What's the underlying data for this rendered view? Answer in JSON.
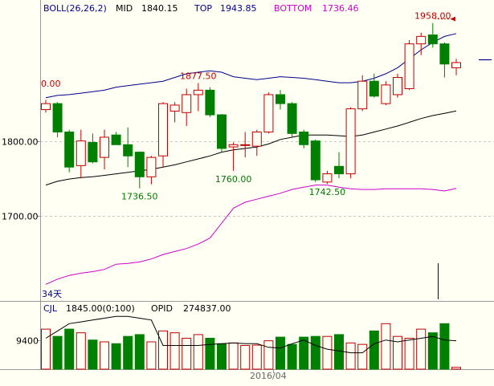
{
  "colors": {
    "background": "#fffff4",
    "up": "#c00000",
    "down": "#008000",
    "top_band": "#00008b",
    "mid_band": "#000000",
    "bottom_band": "#cc00cc",
    "header": "#00008b",
    "annotation_red": "#c00000",
    "annotation_green": "#007a00",
    "grid": "#c8c8c8"
  },
  "price_panel": {
    "legend": {
      "indicator": "BOLL(26,26,2)",
      "mid_label": "MID",
      "mid_value": "1840.15",
      "top_label": "TOP",
      "top_value": "1943.85",
      "bottom_label": "BOTTOM",
      "bottom_value": "1736.46"
    },
    "corner_label": "34天",
    "left_cut_label": "0.00"
  },
  "volume_panel": {
    "legend": {
      "indicator": "CJL",
      "vol_value": "1845.00(0:100)",
      "opid_label": "OPID",
      "opid_value": "274837.00"
    }
  },
  "x_axis": {
    "date_label": "2016/04"
  },
  "chart_data": [
    {
      "type": "candlestick",
      "y_ticks": [
        1800,
        1700
      ],
      "y_tick_labels": [
        "1800.00",
        "1700.00"
      ],
      "ylim": [
        1589,
        1978
      ],
      "candles": [
        {
          "o": 1842,
          "c": 1850,
          "h": 1855,
          "l": 1838
        },
        {
          "o": 1850,
          "c": 1812,
          "h": 1852,
          "l": 1805
        },
        {
          "o": 1812,
          "c": 1765,
          "h": 1815,
          "l": 1758
        },
        {
          "o": 1767,
          "c": 1800,
          "h": 1815,
          "l": 1750
        },
        {
          "o": 1798,
          "c": 1772,
          "h": 1810,
          "l": 1770
        },
        {
          "o": 1778,
          "c": 1805,
          "h": 1815,
          "l": 1762
        },
        {
          "o": 1808,
          "c": 1795,
          "h": 1812,
          "l": 1795
        },
        {
          "o": 1795,
          "c": 1780,
          "h": 1818,
          "l": 1765
        },
        {
          "o": 1785,
          "c": 1752,
          "h": 1786,
          "l": 1736.5
        },
        {
          "o": 1752,
          "c": 1778,
          "h": 1780,
          "l": 1742
        },
        {
          "o": 1780,
          "c": 1850,
          "h": 1852,
          "l": 1765
        },
        {
          "o": 1840,
          "c": 1848,
          "h": 1852,
          "l": 1825
        },
        {
          "o": 1838,
          "c": 1862,
          "h": 1870,
          "l": 1820
        },
        {
          "o": 1862,
          "c": 1868,
          "h": 1877.5,
          "l": 1840
        },
        {
          "o": 1868,
          "c": 1835,
          "h": 1872,
          "l": 1832
        },
        {
          "o": 1835,
          "c": 1790,
          "h": 1836,
          "l": 1785
        },
        {
          "o": 1792,
          "c": 1795,
          "h": 1798,
          "l": 1760
        },
        {
          "o": 1795,
          "c": 1795,
          "h": 1812,
          "l": 1778
        },
        {
          "o": 1793,
          "c": 1812,
          "h": 1815,
          "l": 1780
        },
        {
          "o": 1812,
          "c": 1862,
          "h": 1865,
          "l": 1810
        },
        {
          "o": 1862,
          "c": 1850,
          "h": 1868,
          "l": 1842
        },
        {
          "o": 1850,
          "c": 1810,
          "h": 1852,
          "l": 1805
        },
        {
          "o": 1812,
          "c": 1795,
          "h": 1815,
          "l": 1790
        },
        {
          "o": 1800,
          "c": 1748,
          "h": 1802,
          "l": 1745
        },
        {
          "o": 1745,
          "c": 1756,
          "h": 1760,
          "l": 1742.5
        },
        {
          "o": 1766,
          "c": 1756,
          "h": 1785,
          "l": 1750
        },
        {
          "o": 1756,
          "c": 1843,
          "h": 1845,
          "l": 1750
        },
        {
          "o": 1843,
          "c": 1880,
          "h": 1888,
          "l": 1840
        },
        {
          "o": 1880,
          "c": 1860,
          "h": 1890,
          "l": 1858
        },
        {
          "o": 1850,
          "c": 1875,
          "h": 1880,
          "l": 1848
        },
        {
          "o": 1862,
          "c": 1885,
          "h": 1890,
          "l": 1858
        },
        {
          "o": 1870,
          "c": 1930,
          "h": 1935,
          "l": 1868
        },
        {
          "o": 1930,
          "c": 1940,
          "h": 1945,
          "l": 1915
        },
        {
          "o": 1942,
          "c": 1930,
          "h": 1958,
          "l": 1925
        },
        {
          "o": 1930,
          "c": 1903,
          "h": 1932,
          "l": 1885
        },
        {
          "o": 1898,
          "c": 1905,
          "h": 1910,
          "l": 1888
        }
      ],
      "top_band": [
        1858,
        1861,
        1862,
        1864,
        1866,
        1868,
        1872,
        1874,
        1876,
        1878,
        1880,
        1885,
        1890,
        1892,
        1894,
        1892,
        1886,
        1884,
        1882,
        1884,
        1886,
        1885,
        1884,
        1882,
        1880,
        1878,
        1878,
        1880,
        1884,
        1890,
        1898,
        1910,
        1922,
        1932,
        1940,
        1943.85
      ],
      "mid_band": [
        1741,
        1746,
        1749,
        1751,
        1752,
        1754,
        1756,
        1758,
        1760,
        1762,
        1765,
        1768,
        1772,
        1776,
        1780,
        1785,
        1788,
        1790,
        1792,
        1796,
        1802,
        1805,
        1808,
        1808,
        1808,
        1807,
        1806,
        1808,
        1812,
        1816,
        1820,
        1825,
        1830,
        1834,
        1837,
        1840.15
      ],
      "bottom_band": [
        1608,
        1615,
        1620,
        1623,
        1625,
        1628,
        1635,
        1636,
        1638,
        1642,
        1648,
        1652,
        1656,
        1662,
        1670,
        1690,
        1710,
        1718,
        1722,
        1726,
        1730,
        1735,
        1738,
        1741,
        1741,
        1738,
        1736,
        1735,
        1735,
        1736,
        1736,
        1736,
        1736,
        1735,
        1733,
        1736.46
      ],
      "annotations": [
        {
          "text": "1877.50",
          "index": 13,
          "value": 1877.5
        },
        {
          "text": "1736.50",
          "index": 8,
          "value": 1736.5
        },
        {
          "text": "1760.00",
          "index": 16,
          "value": 1760
        },
        {
          "text": "1742.50",
          "index": 24,
          "value": 1742.5
        },
        {
          "text": "1958.00",
          "index": 33,
          "value": 1958
        }
      ]
    },
    {
      "type": "bar",
      "y_ticks": [
        9400
      ],
      "y_tick_labels": [
        "9400"
      ],
      "ylim": [
        8600,
        10100
      ],
      "volume": [
        9700,
        9500,
        9700,
        9600,
        9400,
        9350,
        9300,
        9500,
        9550,
        9350,
        9650,
        9600,
        9450,
        9550,
        9450,
        9300,
        9320,
        9250,
        9260,
        9380,
        9480,
        9280,
        9480,
        9500,
        9500,
        9550,
        9320,
        9280,
        9650,
        9850,
        9500,
        9450,
        9700,
        9600,
        9850,
        8650
      ],
      "oi_line": [
        9450,
        9650,
        9850,
        9900,
        9950,
        10000,
        10050,
        10050,
        10000,
        9950,
        9250,
        9250,
        9250,
        9250,
        9280,
        9300,
        9320,
        9300,
        9300,
        9200,
        9180,
        9300,
        9400,
        9250,
        9150,
        9100,
        9050,
        9050,
        9300,
        9400,
        9350,
        9400,
        9450,
        9500,
        9400,
        9380
      ]
    }
  ]
}
